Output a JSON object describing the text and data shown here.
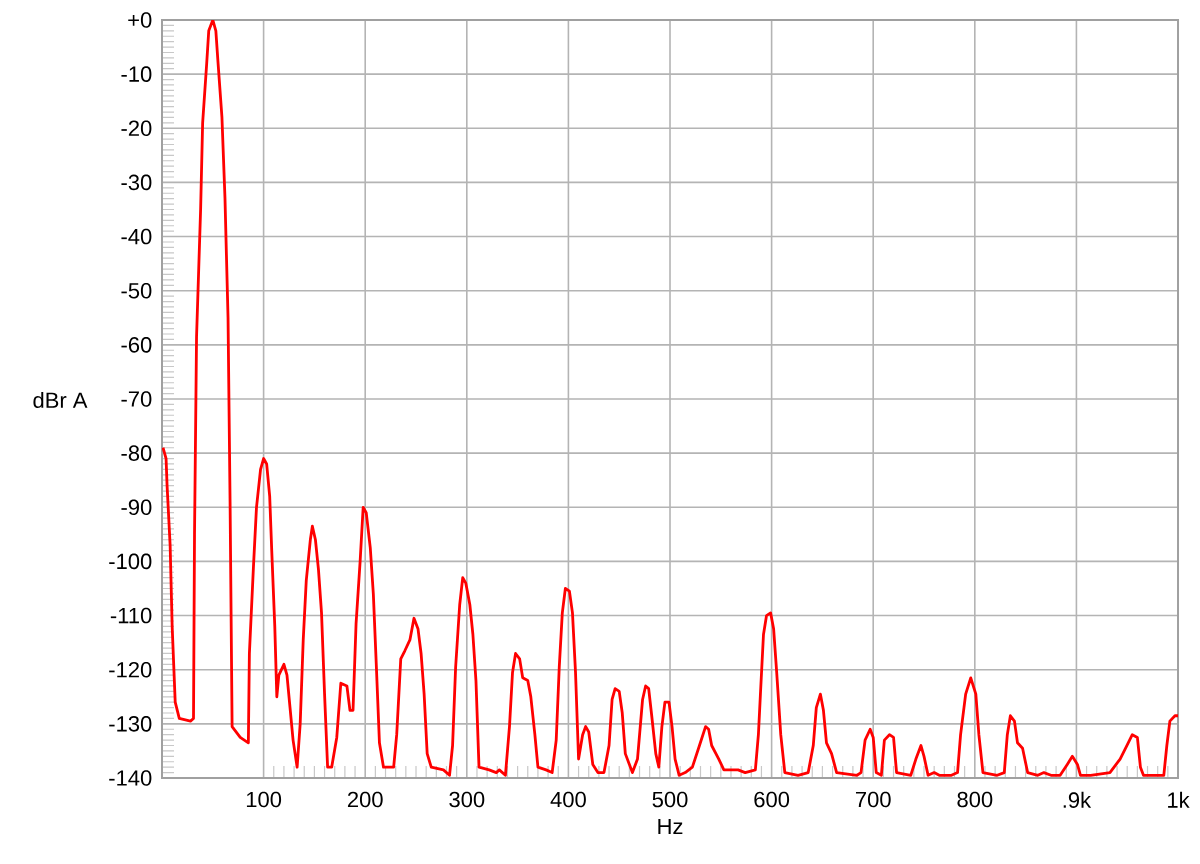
{
  "chart_data": {
    "type": "line",
    "xlabel": "Hz",
    "ylabel": "dBr A",
    "color": "#ff0000",
    "grid": true,
    "xlim": [
      0,
      1000
    ],
    "ylim": [
      -140,
      0
    ],
    "xticks": [
      100,
      200,
      300,
      400,
      500,
      600,
      700,
      800,
      {
        "value": 900,
        "label": ".9k"
      },
      {
        "value": 1000,
        "label": "1k"
      }
    ],
    "yticks": [
      {
        "value": 0,
        "label": "+0"
      },
      -10,
      -20,
      -30,
      -40,
      -50,
      -60,
      -70,
      -80,
      -90,
      -100,
      -110,
      -120,
      -130,
      -140
    ],
    "x": [
      1,
      4,
      5,
      8,
      10,
      13,
      17,
      28,
      31,
      32,
      34,
      38,
      40,
      44,
      46,
      50,
      53,
      55,
      59,
      62,
      65,
      67,
      69,
      77,
      85,
      86,
      90,
      93,
      97,
      100,
      103,
      106,
      108,
      111,
      113,
      115,
      120,
      123,
      126,
      129,
      133,
      136,
      139,
      142,
      146,
      148,
      151,
      154,
      157,
      160,
      163,
      167,
      172,
      176,
      182,
      185,
      188,
      191,
      195,
      198,
      201,
      205,
      208,
      211,
      214,
      218,
      228,
      231,
      235,
      239,
      244,
      248,
      252,
      255,
      258,
      261,
      265,
      277,
      283,
      286,
      289,
      293,
      296,
      299,
      303,
      306,
      309,
      312,
      322,
      329,
      332,
      338,
      342,
      345,
      348,
      352,
      355,
      360,
      363,
      367,
      370,
      378,
      384,
      388,
      391,
      394,
      397,
      401,
      404,
      407,
      410,
      414,
      417,
      420,
      424,
      429,
      435,
      440,
      443,
      446,
      450,
      453,
      456,
      463,
      468,
      473,
      476,
      479,
      482,
      486,
      489,
      492,
      495,
      499,
      502,
      505,
      509,
      515,
      522,
      529,
      535,
      538,
      541,
      548,
      553,
      561,
      567,
      574,
      584,
      587,
      589,
      592,
      595,
      599,
      602,
      605,
      609,
      613,
      626,
      636,
      641,
      644,
      648,
      651,
      654,
      659,
      664,
      684,
      688,
      692,
      697,
      700,
      703,
      708,
      711,
      716,
      720,
      723,
      737,
      742,
      747,
      750,
      754,
      760,
      765,
      777,
      783,
      786,
      791,
      796,
      801,
      804,
      808,
      822,
      829,
      832,
      835,
      839,
      842,
      847,
      852,
      862,
      868,
      875,
      884,
      891,
      896,
      901,
      904,
      914,
      933,
      943,
      951,
      955,
      960,
      963,
      966,
      986,
      989,
      992,
      997,
      1000
    ],
    "values": [
      -79,
      -81,
      -86,
      -97,
      -112,
      -126,
      -129,
      -129.5,
      -129,
      -95,
      -58.5,
      -35,
      -19,
      -8,
      -2,
      0,
      -2,
      -7.5,
      -18,
      -33,
      -55,
      -89,
      -130.5,
      -132.5,
      -133.5,
      -117,
      -101,
      -90,
      -83,
      -81,
      -82,
      -88,
      -98,
      -112,
      -125,
      -121,
      -119,
      -121,
      -127,
      -133,
      -138,
      -130,
      -114.5,
      -103.5,
      -96,
      -93.5,
      -96,
      -101.5,
      -109.5,
      -124.5,
      -138,
      -138,
      -132.5,
      -122.5,
      -123,
      -127.5,
      -127.5,
      -111.5,
      -100,
      -90,
      -91,
      -97.5,
      -106,
      -119.5,
      -133.5,
      -138,
      -138,
      -132,
      -118,
      -116.5,
      -114.5,
      -110.5,
      -112.5,
      -117,
      -124.5,
      -135.5,
      -138,
      -138.5,
      -139.5,
      -134,
      -119.5,
      -108,
      -103,
      -104,
      -108,
      -113.5,
      -122,
      -138,
      -138.5,
      -139,
      -138.5,
      -139.5,
      -130.5,
      -120.5,
      -117,
      -118,
      -121.5,
      -122,
      -125,
      -132,
      -138,
      -138.5,
      -139,
      -133,
      -119.5,
      -109.5,
      -105,
      -105.5,
      -109.5,
      -120.5,
      -136.5,
      -132,
      -130.5,
      -131.5,
      -137.5,
      -139,
      -139,
      -134,
      -125.5,
      -123.5,
      -124,
      -128,
      -135.5,
      -139,
      -136.5,
      -125.5,
      -123,
      -123.5,
      -128.5,
      -135.5,
      -138,
      -130.5,
      -126,
      -126,
      -130.5,
      -136.5,
      -139.5,
      -139,
      -138,
      -134,
      -130.5,
      -131,
      -134,
      -136.5,
      -138.5,
      -138.5,
      -138.5,
      -139,
      -138.5,
      -132,
      -124.5,
      -113.5,
      -110,
      -109.5,
      -112.5,
      -120.5,
      -132,
      -139,
      -139.5,
      -139,
      -134,
      -127,
      -124.5,
      -127.5,
      -133.5,
      -135.5,
      -139,
      -139.5,
      -139,
      -133,
      -131,
      -132.5,
      -139,
      -139.5,
      -133,
      -132,
      -132.5,
      -139,
      -139.5,
      -136.5,
      -134,
      -136,
      -139.5,
      -139,
      -139.5,
      -139.5,
      -139,
      -132,
      -124.5,
      -121.5,
      -124.5,
      -132,
      -139,
      -139.5,
      -139,
      -132,
      -128.5,
      -129.5,
      -133.5,
      -134.5,
      -139,
      -139.5,
      -139,
      -139.5,
      -139.5,
      -137.5,
      -136,
      -137.5,
      -139.5,
      -139.5,
      -139,
      -136.5,
      -133.5,
      -132,
      -132.5,
      -138,
      -139.5,
      -139.5,
      -134,
      -129.5,
      -128.5,
      -128.5
    ]
  }
}
